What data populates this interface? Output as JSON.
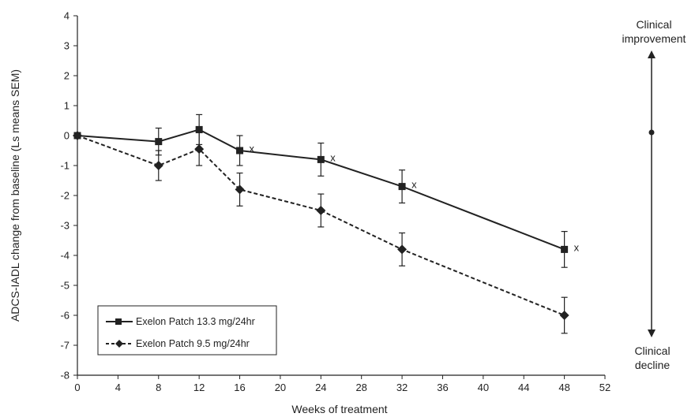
{
  "chart_data": {
    "type": "line",
    "xlabel": "Weeks of treatment",
    "ylabel": "ADCS-IADL change from baseline (Ls means SEM)",
    "xlim": [
      0,
      52
    ],
    "ylim": [
      -8,
      4
    ],
    "x_ticks": [
      0,
      4,
      8,
      12,
      16,
      20,
      24,
      28,
      32,
      36,
      40,
      44,
      48,
      52
    ],
    "y_ticks": [
      4,
      3,
      2,
      1,
      0,
      -1,
      -2,
      -3,
      -4,
      -5,
      -6,
      -7,
      -8
    ],
    "grid": false,
    "legend_position": "bottom-left",
    "series": [
      {
        "name": "Exelon Patch 13.3 mg/24hr",
        "marker": "square",
        "line_style": "solid",
        "color": "#222222",
        "x": [
          0,
          8,
          12,
          16,
          24,
          32,
          48
        ],
        "y": [
          0,
          -0.2,
          0.2,
          -0.5,
          -0.8,
          -1.7,
          -3.8
        ],
        "error": [
          0,
          0.45,
          0.5,
          0.5,
          0.55,
          0.55,
          0.6
        ],
        "annotations": [
          {
            "x": 16,
            "text": "x"
          },
          {
            "x": 24,
            "text": "x"
          },
          {
            "x": 32,
            "text": "x"
          },
          {
            "x": 48,
            "text": "x"
          }
        ]
      },
      {
        "name": "Exelon Patch 9.5 mg/24hr",
        "marker": "diamond",
        "line_style": "dashed",
        "color": "#222222",
        "x": [
          0,
          8,
          12,
          16,
          24,
          32,
          48
        ],
        "y": [
          0,
          -1.0,
          -0.45,
          -1.8,
          -2.5,
          -3.8,
          -6.0
        ],
        "error": [
          0,
          0.5,
          0.55,
          0.55,
          0.55,
          0.55,
          0.6
        ]
      }
    ],
    "side_indicator": {
      "top_label": [
        "Clinical",
        "improvement"
      ],
      "bottom_label": [
        "Clinical",
        "decline"
      ]
    }
  }
}
